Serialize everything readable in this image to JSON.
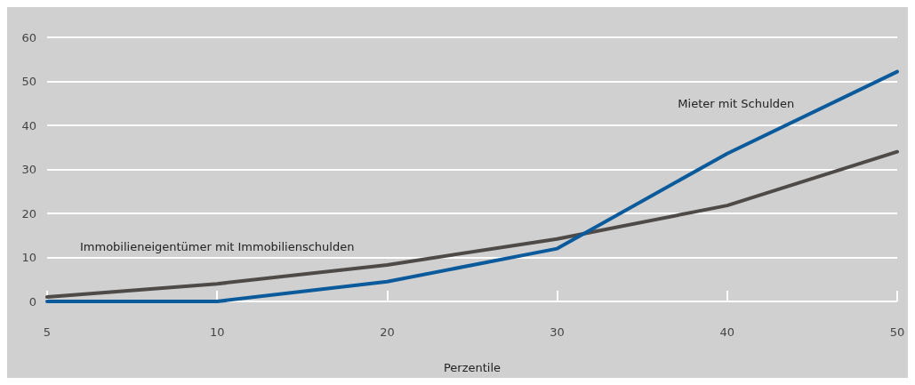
{
  "chart_data": {
    "type": "line",
    "xlabel": "Perzentile",
    "categories": [
      "5",
      "10",
      "20",
      "30",
      "40",
      "50"
    ],
    "series": [
      {
        "name": "Immobilieneigentümer mit Immobilienschulden",
        "color": "#4d4a48",
        "values": [
          1,
          4,
          8.3,
          14.2,
          21.8,
          34
        ]
      },
      {
        "name": "Mieter mit Schulden",
        "color": "#0a5a9c",
        "values": [
          0,
          0,
          4.5,
          12,
          33.6,
          52.2
        ]
      }
    ],
    "ylim": [
      0,
      60
    ],
    "yticks": [
      0,
      10,
      20,
      30,
      40,
      50,
      60
    ],
    "grid": "y",
    "legend": false,
    "marker": "none",
    "line_style": "solid"
  }
}
